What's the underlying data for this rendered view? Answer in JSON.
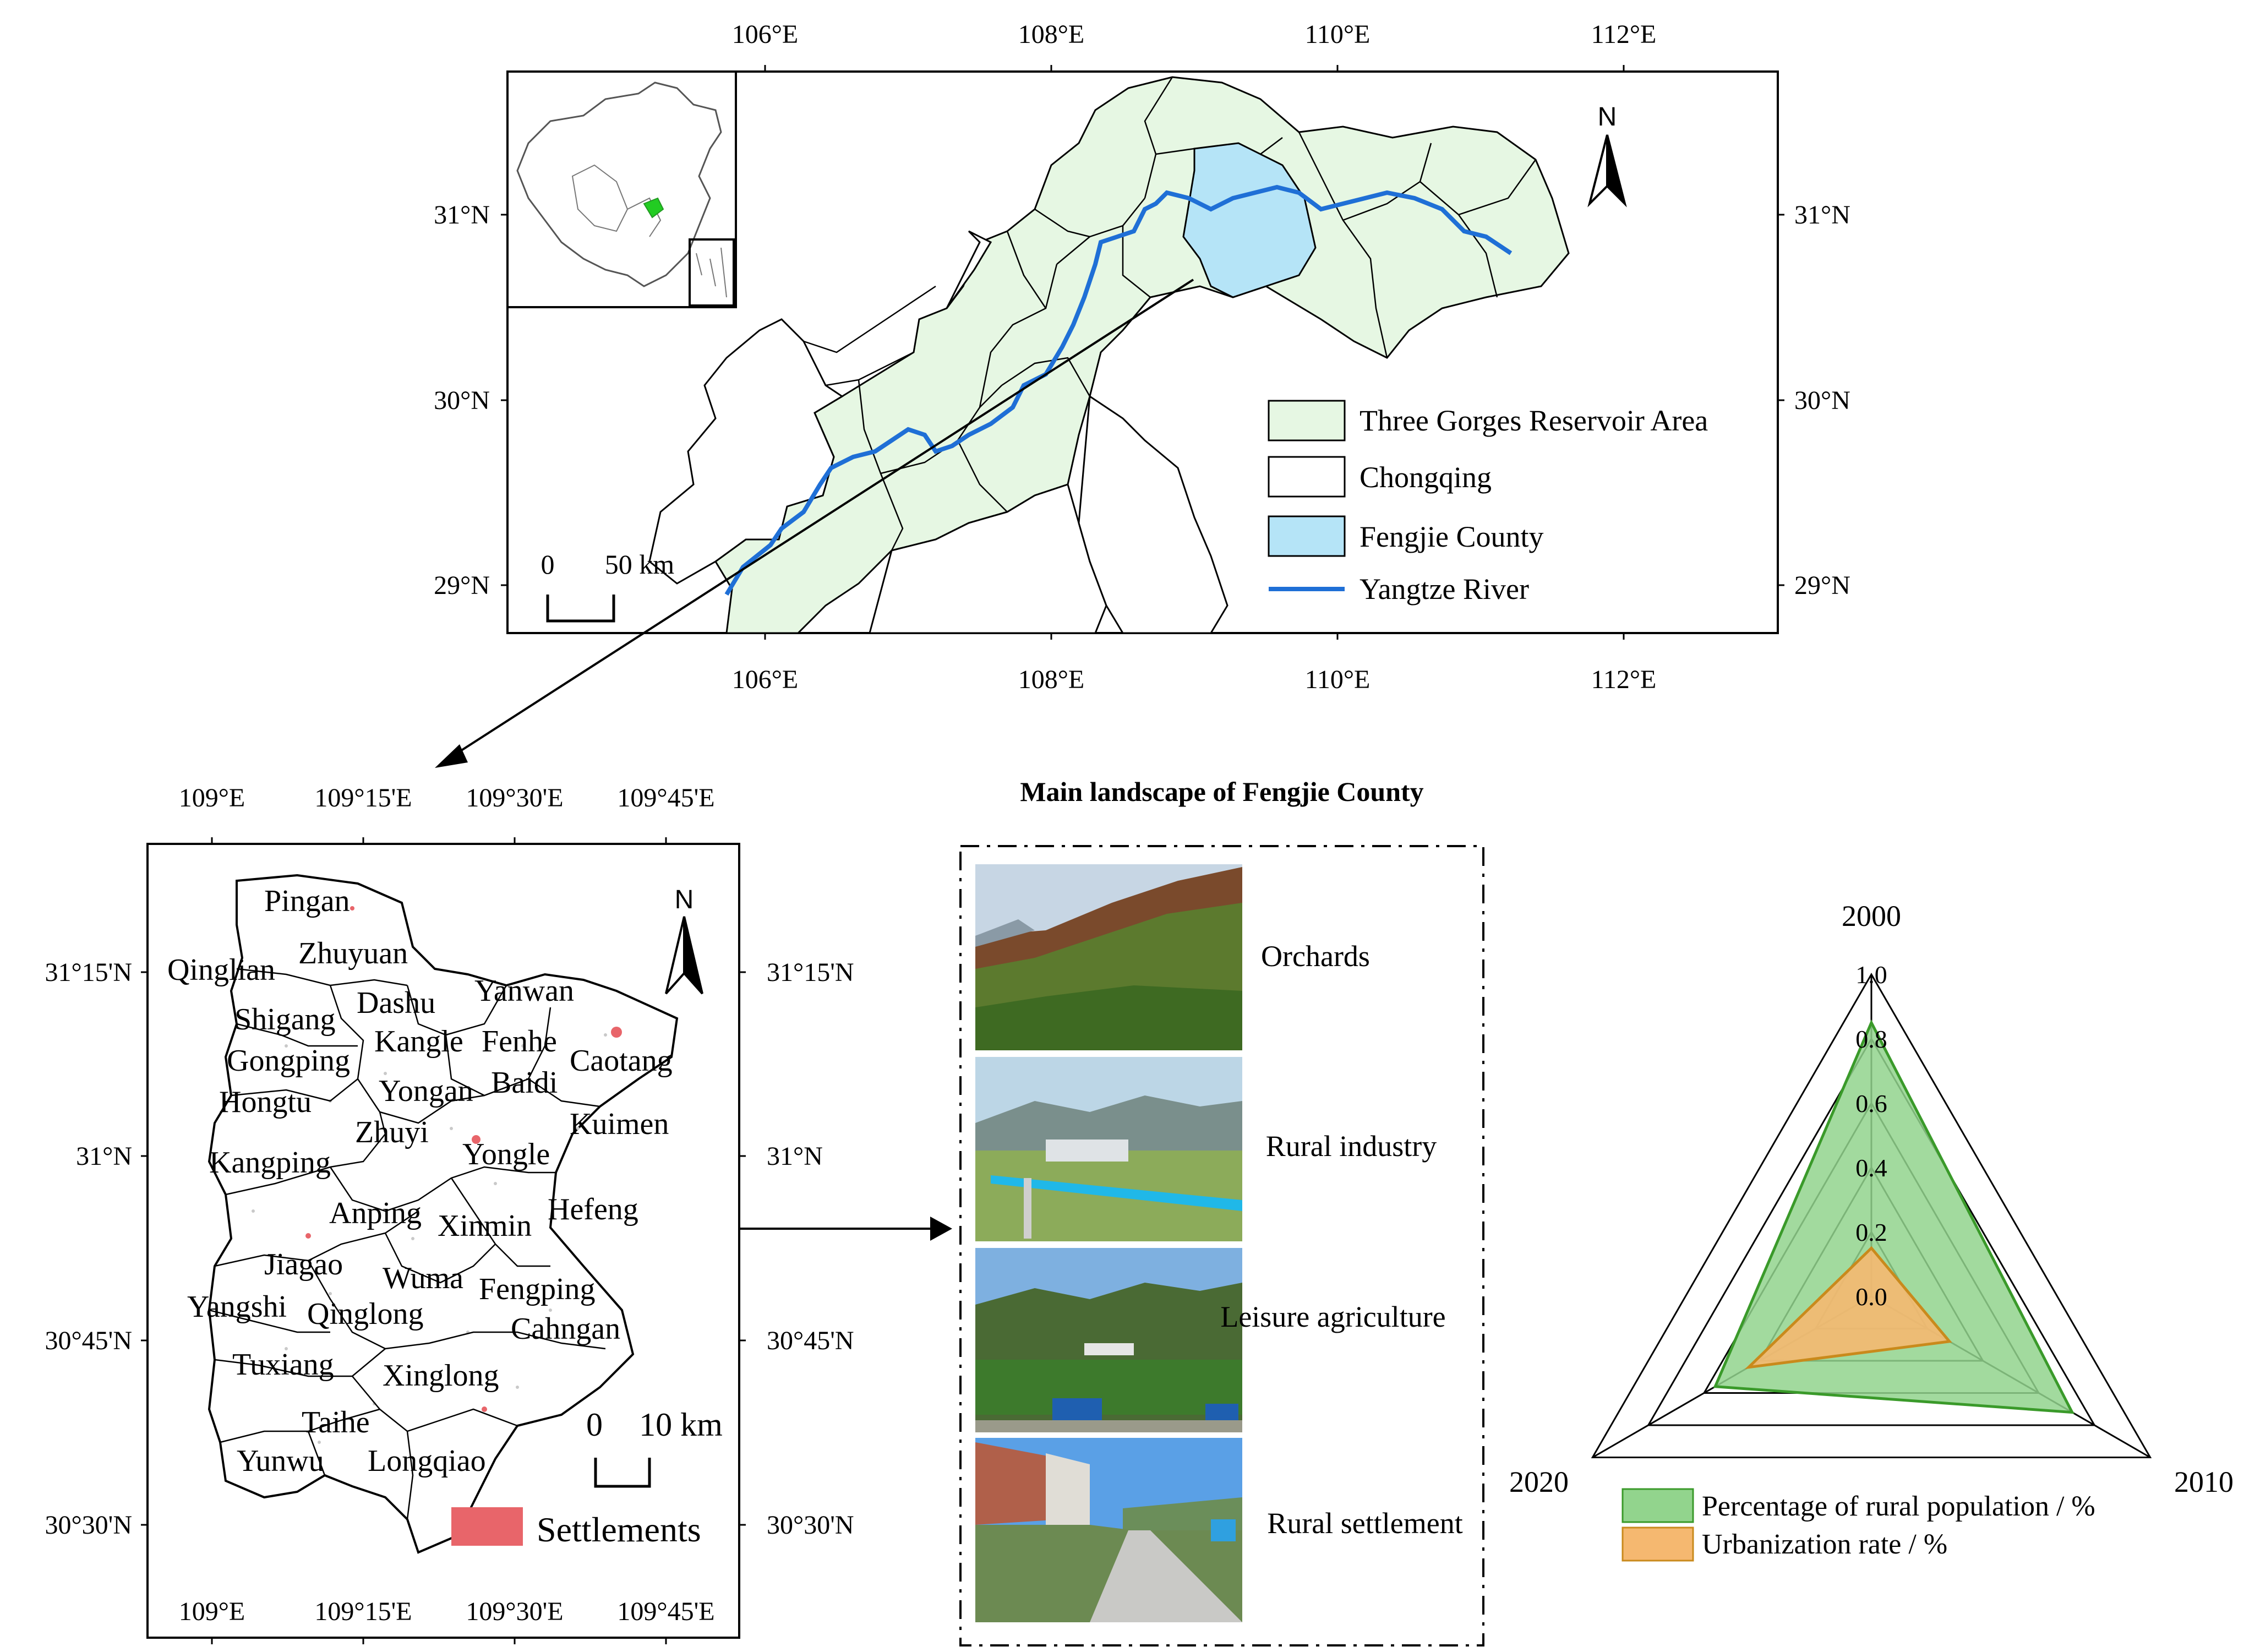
{
  "overview_map": {
    "x_ticks": [
      "106°E",
      "108°E",
      "110°E",
      "112°E"
    ],
    "y_ticks": [
      "31°N",
      "30°N",
      "29°N"
    ],
    "north": "N",
    "scale_bar": {
      "zero": "0",
      "label": "50 km"
    },
    "legend": {
      "items": [
        {
          "label": "Three Gorges Reservoir Area",
          "color": "#e6f7e3"
        },
        {
          "label": "Chongqing",
          "color": "#ffffff"
        },
        {
          "label": "Fengjie County",
          "color": "#b5e4f7"
        },
        {
          "label": "Yangtze River",
          "color": "#1f6fd6"
        }
      ]
    }
  },
  "fengjie_map": {
    "x_ticks": [
      "109°E",
      "109°15'E",
      "109°30'E",
      "109°45'E"
    ],
    "y_ticks": [
      "31°15'N",
      "31°N",
      "30°45'N",
      "30°30'N"
    ],
    "north": "N",
    "scale_bar": {
      "zero": "0",
      "label": "10 km"
    },
    "legend": {
      "label": "Settlements",
      "color": "#e8656a"
    },
    "towns": [
      "Pingan",
      "Zhuyuan",
      "Qinglian",
      "Dashu",
      "Yanwan",
      "Shigang",
      "Kangle",
      "Fenhe",
      "Caotang",
      "Gongping",
      "Baidi",
      "Hongtu",
      "Yongan",
      "Kuimen",
      "Zhuyi",
      "Yongle",
      "Kangping",
      "Hefeng",
      "Anping",
      "Xinmin",
      "Jiagao",
      "Wuma",
      "Fengping",
      "Yangshi",
      "Qinglong",
      "Cahngan",
      "Tuxiang",
      "Xinglong",
      "Taihe",
      "Yunwu",
      "Longqiao"
    ]
  },
  "landscape": {
    "title": "Main landscape of Fengjie County",
    "items": [
      "Orchards",
      "Rural industry",
      "Leisure agriculture",
      "Rural settlement"
    ]
  },
  "chart_data": {
    "type": "radar",
    "axes": [
      "2000",
      "2010",
      "2020"
    ],
    "scale_ticks": [
      "1.0",
      "0.8",
      "0.6",
      "0.4",
      "0.2",
      "0.0"
    ],
    "range": [
      0,
      1
    ],
    "series": [
      {
        "name": "Percentage of rural population / %",
        "values": [
          0.85,
          0.72,
          0.56
        ],
        "color": "#3a9a2a",
        "fill": "#92d48d"
      },
      {
        "name": "Urbanization rate / %",
        "values": [
          0.15,
          0.28,
          0.44
        ],
        "color": "#c98a1c",
        "fill": "#f5b870"
      }
    ]
  }
}
